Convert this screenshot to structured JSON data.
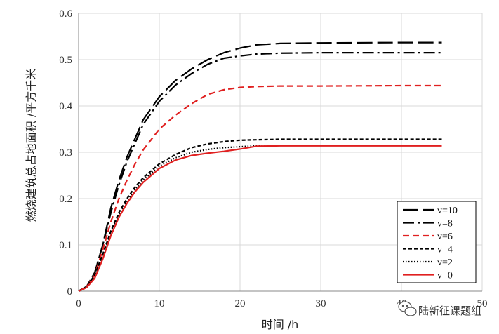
{
  "chart_data": {
    "type": "line",
    "xlabel": "时间 /h",
    "ylabel": "燃烧建筑总占地面积 /平方千米",
    "xlim": [
      0,
      50
    ],
    "ylim": [
      0,
      0.6
    ],
    "xticks": [
      0,
      10,
      20,
      30,
      40,
      50
    ],
    "yticks": [
      0,
      0.1,
      0.2,
      0.3,
      0.4,
      0.5,
      0.6
    ],
    "grid": true,
    "legend_position": "bottom-right",
    "series": [
      {
        "name": "v=10",
        "color": "#000000",
        "dash": "long-dash",
        "x": [
          0,
          1,
          2,
          3,
          4,
          5,
          6,
          7,
          8,
          10,
          12,
          14,
          16,
          18,
          20,
          22,
          25,
          30,
          40,
          45
        ],
        "y": [
          0,
          0.01,
          0.04,
          0.1,
          0.18,
          0.24,
          0.29,
          0.33,
          0.37,
          0.42,
          0.455,
          0.48,
          0.5,
          0.515,
          0.525,
          0.532,
          0.535,
          0.536,
          0.537,
          0.537
        ]
      },
      {
        "name": "v=8",
        "color": "#000000",
        "dash": "dash-dot",
        "x": [
          0,
          1,
          2,
          3,
          4,
          5,
          6,
          7,
          8,
          10,
          12,
          14,
          16,
          18,
          20,
          22,
          25,
          30,
          40,
          45
        ],
        "y": [
          0,
          0.01,
          0.04,
          0.1,
          0.17,
          0.23,
          0.28,
          0.32,
          0.36,
          0.41,
          0.445,
          0.47,
          0.49,
          0.503,
          0.508,
          0.512,
          0.514,
          0.515,
          0.515,
          0.515
        ]
      },
      {
        "name": "v=6",
        "color": "#e02020",
        "dash": "dash",
        "x": [
          0,
          1,
          2,
          3,
          4,
          5,
          6,
          7,
          8,
          10,
          12,
          14,
          16,
          18,
          20,
          22,
          25,
          30,
          40,
          45
        ],
        "y": [
          0,
          0.01,
          0.035,
          0.09,
          0.15,
          0.2,
          0.24,
          0.275,
          0.305,
          0.35,
          0.38,
          0.405,
          0.425,
          0.435,
          0.44,
          0.442,
          0.443,
          0.443,
          0.444,
          0.444
        ]
      },
      {
        "name": "v=4",
        "color": "#000000",
        "dash": "short-dash",
        "x": [
          0,
          1,
          2,
          3,
          4,
          5,
          6,
          7,
          8,
          10,
          12,
          14,
          16,
          18,
          20,
          22,
          25,
          30,
          40,
          45
        ],
        "y": [
          0,
          0.01,
          0.035,
          0.08,
          0.13,
          0.17,
          0.2,
          0.225,
          0.245,
          0.275,
          0.295,
          0.31,
          0.318,
          0.323,
          0.326,
          0.327,
          0.328,
          0.328,
          0.328,
          0.328
        ]
      },
      {
        "name": "v=2",
        "color": "#000000",
        "dash": "dotted",
        "x": [
          0,
          1,
          2,
          3,
          4,
          5,
          6,
          7,
          8,
          10,
          12,
          14,
          16,
          18,
          20,
          22,
          25,
          30,
          40,
          45
        ],
        "y": [
          0,
          0.008,
          0.03,
          0.075,
          0.125,
          0.165,
          0.195,
          0.22,
          0.24,
          0.27,
          0.288,
          0.3,
          0.306,
          0.31,
          0.312,
          0.314,
          0.315,
          0.315,
          0.315,
          0.315
        ]
      },
      {
        "name": "v=0",
        "color": "#e02020",
        "dash": "solid",
        "x": [
          0,
          1,
          2,
          3,
          4,
          5,
          6,
          7,
          8,
          10,
          12,
          14,
          16,
          18,
          20,
          22,
          25,
          30,
          40,
          45
        ],
        "y": [
          0,
          0.008,
          0.028,
          0.07,
          0.12,
          0.16,
          0.19,
          0.215,
          0.235,
          0.265,
          0.283,
          0.293,
          0.298,
          0.302,
          0.307,
          0.313,
          0.314,
          0.314,
          0.314,
          0.314
        ]
      }
    ]
  },
  "watermark": {
    "icon": "wechat-icon",
    "text": "陆新征课题组"
  }
}
